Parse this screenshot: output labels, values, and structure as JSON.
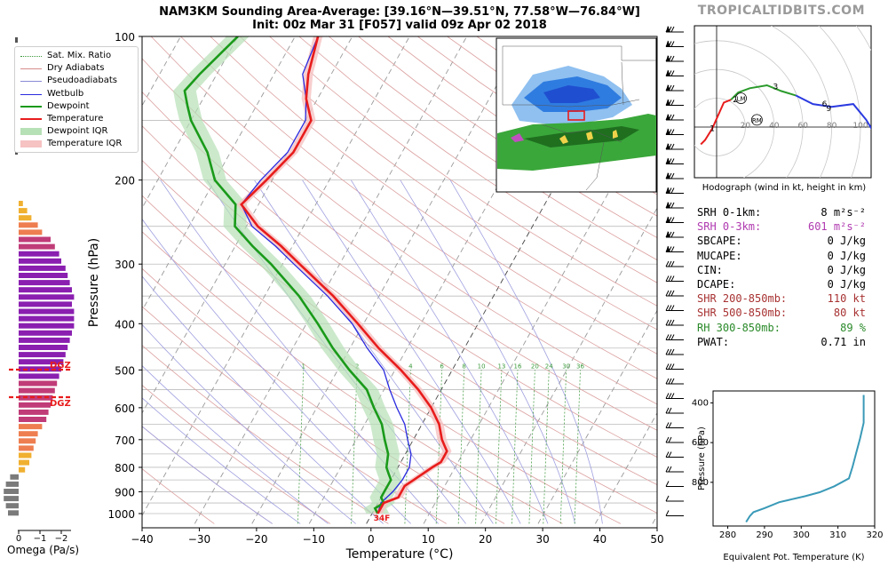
{
  "header": {
    "title_line1": "NAM3KM Sounding Area-Average: [39.16°N—39.51°N, 77.58°W—76.84°W]",
    "title_line2": "Init: 00z Mar 31 [F057] valid 09z Apr 02 2018",
    "brand": "TROPICALTIDBITS.COM"
  },
  "legend": [
    {
      "label": "Sat. Mix. Ratio",
      "color": "#3a9a3a",
      "style": "dotted"
    },
    {
      "label": "Dry Adiabats",
      "color": "#d98b8b",
      "style": "solid"
    },
    {
      "label": "Pseudoadiabats",
      "color": "#8a8ad8",
      "style": "solid"
    },
    {
      "label": "Wetbulb",
      "color": "#2a2ae0",
      "style": "solid"
    },
    {
      "label": "Dewpoint",
      "color": "#1a9a1a",
      "style": "thick"
    },
    {
      "label": "Temperature",
      "color": "#e81c1c",
      "style": "thick"
    },
    {
      "label": "Dewpoint IQR",
      "color": "#b6e0b6",
      "style": "patch"
    },
    {
      "label": "Temperature IQR",
      "color": "#f6c2c2",
      "style": "patch"
    }
  ],
  "chart_data": [
    {
      "type": "line",
      "name": "skewt",
      "xlabel": "Temperature (°C)",
      "ylabel": "Pressure (hPa)",
      "xlim": [
        -40,
        50
      ],
      "ylim": [
        1050,
        100
      ],
      "x_ticks": [
        -40,
        -30,
        -20,
        -10,
        0,
        10,
        20,
        30,
        40,
        50
      ],
      "x_tick_labels": [
        "−40",
        "−30",
        "−20",
        "−10",
        "0",
        "10",
        "20",
        "30",
        "40",
        "50"
      ],
      "y_ticks": [
        100,
        200,
        300,
        400,
        500,
        600,
        700,
        800,
        900,
        1000
      ],
      "isobars": [
        100,
        150,
        200,
        250,
        300,
        350,
        400,
        450,
        500,
        550,
        600,
        650,
        700,
        750,
        800,
        850,
        900,
        950,
        1000
      ],
      "mixing_ratio_labels": [
        "1",
        "2",
        "4",
        "6",
        "8",
        "10",
        "13",
        "16",
        "20",
        "24",
        "30",
        "36"
      ],
      "freezing_label": "34F",
      "dgz_label": "DGZ",
      "series": [
        {
          "name": "Temperature",
          "color": "#e81c1c",
          "points": [
            [
              1000,
              1
            ],
            [
              975,
              1
            ],
            [
              950,
              1
            ],
            [
              925,
              3
            ],
            [
              900,
              3
            ],
            [
              875,
              3
            ],
            [
              850,
              4
            ],
            [
              825,
              5
            ],
            [
              800,
              6
            ],
            [
              780,
              7
            ],
            [
              760,
              7
            ],
            [
              740,
              7
            ],
            [
              720,
              6
            ],
            [
              700,
              5
            ],
            [
              650,
              3
            ],
            [
              600,
              0
            ],
            [
              550,
              -4
            ],
            [
              500,
              -9
            ],
            [
              450,
              -15
            ],
            [
              400,
              -21
            ],
            [
              350,
              -28
            ],
            [
              300,
              -37
            ],
            [
              275,
              -42
            ],
            [
              250,
              -48
            ],
            [
              225,
              -53
            ],
            [
              200,
              -51
            ],
            [
              175,
              -49
            ],
            [
              150,
              -49
            ],
            [
              135,
              -52
            ],
            [
              120,
              -54
            ],
            [
              100,
              -56
            ]
          ]
        },
        {
          "name": "Dewpoint",
          "color": "#1a9a1a",
          "points": [
            [
              1000,
              1
            ],
            [
              975,
              0
            ],
            [
              950,
              1
            ],
            [
              925,
              0
            ],
            [
              900,
              0
            ],
            [
              875,
              0
            ],
            [
              850,
              0
            ],
            [
              825,
              -1
            ],
            [
              800,
              -2
            ],
            [
              750,
              -3
            ],
            [
              700,
              -5
            ],
            [
              650,
              -7
            ],
            [
              600,
              -10
            ],
            [
              550,
              -13
            ],
            [
              500,
              -18
            ],
            [
              450,
              -23
            ],
            [
              400,
              -28
            ],
            [
              350,
              -34
            ],
            [
              300,
              -42
            ],
            [
              275,
              -47
            ],
            [
              250,
              -52
            ],
            [
              225,
              -54
            ],
            [
              200,
              -60
            ],
            [
              175,
              -64
            ],
            [
              150,
              -70
            ],
            [
              140,
              -72
            ],
            [
              130,
              -74
            ],
            [
              120,
              -73
            ],
            [
              100,
              -70
            ]
          ]
        },
        {
          "name": "Wetbulb",
          "color": "#2a2ae0",
          "points": [
            [
              1000,
              1
            ],
            [
              950,
              0.5
            ],
            [
              900,
              1.5
            ],
            [
              850,
              2
            ],
            [
              800,
              2
            ],
            [
              750,
              1
            ],
            [
              700,
              -1
            ],
            [
              650,
              -3
            ],
            [
              600,
              -6
            ],
            [
              550,
              -9
            ],
            [
              500,
              -12
            ],
            [
              450,
              -17
            ],
            [
              400,
              -22
            ],
            [
              350,
              -29
            ],
            [
              300,
              -38
            ],
            [
              275,
              -43
            ],
            [
              250,
              -49
            ],
            [
              225,
              -53
            ],
            [
              200,
              -52
            ],
            [
              175,
              -50
            ],
            [
              150,
              -50
            ],
            [
              135,
              -52
            ],
            [
              120,
              -55
            ],
            [
              100,
              -56
            ]
          ]
        }
      ],
      "omega": [
        -0.2,
        -0.4,
        -0.6,
        -0.9,
        -1.1,
        -1.5,
        -1.7,
        -1.9,
        -2.0,
        -2.2,
        -2.3,
        -2.4,
        -2.5,
        -2.6,
        -2.5,
        -2.6,
        -2.6,
        -2.6,
        -2.5,
        -2.4,
        -2.3,
        -2.2,
        -2.1,
        -2.0,
        -1.9,
        -1.8,
        -1.7,
        -1.6,
        -1.5,
        -1.4,
        -1.3,
        -1.1,
        -0.9,
        -0.8,
        -0.7,
        -0.6,
        -0.5,
        -0.3,
        0.4,
        0.6,
        0.7,
        0.7,
        0.6,
        0.5
      ]
    },
    {
      "type": "line",
      "name": "hodograph",
      "title": "Hodograph (wind in kt, height in km)",
      "ring_labels": [
        "20",
        "40",
        "60",
        "80",
        "100"
      ],
      "points": [
        [
          -11,
          -12
        ],
        [
          -8,
          -9
        ],
        [
          -3,
          -1
        ],
        [
          5,
          17
        ],
        [
          10,
          19
        ],
        [
          15,
          24
        ],
        [
          23,
          27
        ],
        [
          35,
          29
        ],
        [
          45,
          25
        ],
        [
          55,
          22
        ],
        [
          67,
          16
        ],
        [
          80,
          14
        ],
        [
          95,
          16
        ],
        [
          104,
          5
        ],
        [
          110,
          -5
        ]
      ],
      "height_labels": [
        {
          "label": "1",
          "u": -3,
          "v": -1
        },
        {
          "label": "2",
          "u": 13,
          "v": 19
        },
        {
          "label": "3",
          "u": 41,
          "v": 28
        },
        {
          "label": "6",
          "u": 75,
          "v": 16
        },
        {
          "label": "9",
          "u": 78,
          "v": 13
        }
      ],
      "storm_motion": [
        {
          "label": "LM",
          "u": 17,
          "v": 20
        },
        {
          "label": "RM",
          "u": 28,
          "v": 5
        }
      ]
    },
    {
      "type": "line",
      "name": "theta_e",
      "xlabel": "Equivalent Pot. Temperature (K)",
      "ylabel": "Pressure (hPa)",
      "xlim": [
        276,
        320
      ],
      "ylim": [
        1020,
        340
      ],
      "x_ticks": [
        280,
        290,
        300,
        310,
        320
      ],
      "y_ticks": [
        400,
        600,
        800
      ],
      "points": [
        [
          1000,
          285
        ],
        [
          970,
          286
        ],
        [
          950,
          287
        ],
        [
          930,
          290
        ],
        [
          900,
          294
        ],
        [
          870,
          301
        ],
        [
          850,
          305
        ],
        [
          820,
          309
        ],
        [
          780,
          313
        ],
        [
          720,
          314
        ],
        [
          650,
          315
        ],
        [
          580,
          316
        ],
        [
          500,
          317
        ],
        [
          420,
          317
        ],
        [
          360,
          317
        ]
      ]
    }
  ],
  "indices": [
    {
      "label": "SRH 0-1km:",
      "value": "8 m²s⁻²",
      "color": "#000000"
    },
    {
      "label": "SRH 0-3km:",
      "value": "601 m²s⁻²",
      "color": "#b03ab0"
    },
    {
      "label": "SBCAPE:",
      "value": "0 J/kg",
      "color": "#000000"
    },
    {
      "label": "MUCAPE:",
      "value": "0 J/kg",
      "color": "#000000"
    },
    {
      "label": "CIN:",
      "value": "0 J/kg",
      "color": "#000000"
    },
    {
      "label": "DCAPE:",
      "value": "0 J/kg",
      "color": "#000000"
    },
    {
      "label": "SHR 200-850mb:",
      "value": "110 kt",
      "color": "#a83232"
    },
    {
      "label": "SHR 500-850mb:",
      "value": "80 kt",
      "color": "#a83232"
    },
    {
      "label": "RH 300-850mb:",
      "value": "89 %",
      "color": "#2a8a2a"
    },
    {
      "label": "PWAT:",
      "value": "0.71 in",
      "color": "#000000"
    }
  ],
  "omega_axis": {
    "label": "Omega (Pa/s)",
    "ticks": [
      "0",
      "−1",
      "−2"
    ]
  }
}
